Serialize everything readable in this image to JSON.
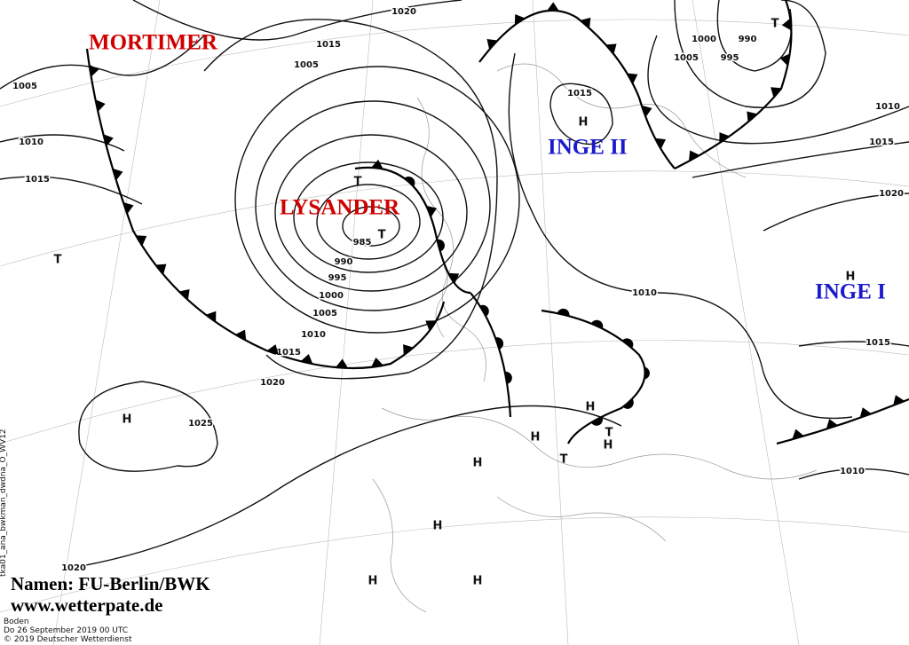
{
  "systems": [
    {
      "label": "MORTIMER"
    },
    {
      "label": "LYSANDER"
    },
    {
      "label": "INGE II"
    },
    {
      "label": "INGE I"
    }
  ],
  "isobar_labels": [
    1020,
    1015,
    1005,
    1005,
    1010,
    1015,
    985,
    990,
    995,
    1000,
    1005,
    1010,
    1015,
    1020,
    1025,
    1020,
    1015,
    1010,
    1015,
    1010,
    1000,
    995,
    990,
    1005,
    1010,
    1015,
    1020
  ],
  "pressure_centers": [
    "T",
    "T",
    "T",
    "T",
    "H",
    "H",
    "H",
    "H",
    "H",
    "T",
    "H",
    "T",
    "H",
    "H",
    "H",
    "H"
  ],
  "credits": [
    "Namen: FU-Berlin/BWK",
    "www.wetterpate.de"
  ],
  "footer": {
    "level": "Boden",
    "date": "Do 26 September 2019 00 UTC",
    "copyright": "© 2019 Deutscher Wetterdienst"
  },
  "product_id": "tka01_ana_bwkman_dwdna_O_WV12"
}
